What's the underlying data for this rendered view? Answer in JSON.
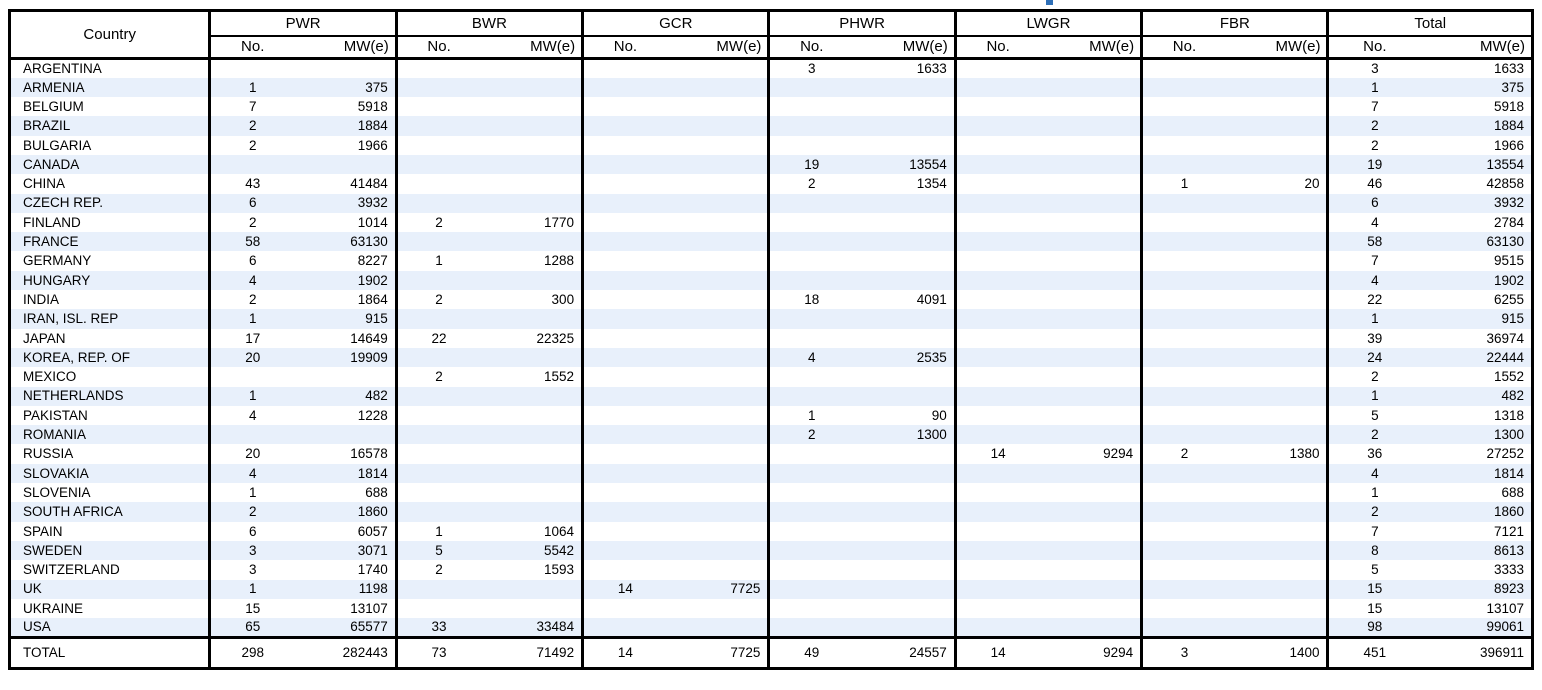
{
  "page": {
    "artifact_color": "#2e6fb7",
    "stripe_color": "#e8f0fb"
  },
  "table": {
    "corner_header": "Country",
    "groups": [
      "PWR",
      "BWR",
      "GCR",
      "PHWR",
      "LWGR",
      "FBR",
      "Total"
    ],
    "sub_headers": {
      "no": "No.",
      "mw": "MW(e)"
    },
    "rows": [
      {
        "country": "ARGENTINA",
        "values": [
          "",
          "",
          "",
          "",
          "",
          "",
          "3",
          "1633",
          "",
          "",
          "",
          "",
          "3",
          "1633"
        ]
      },
      {
        "country": "ARMENIA",
        "values": [
          "1",
          "375",
          "",
          "",
          "",
          "",
          "",
          "",
          "",
          "",
          "",
          "",
          "1",
          "375"
        ]
      },
      {
        "country": "BELGIUM",
        "values": [
          "7",
          "5918",
          "",
          "",
          "",
          "",
          "",
          "",
          "",
          "",
          "",
          "",
          "7",
          "5918"
        ]
      },
      {
        "country": "BRAZIL",
        "values": [
          "2",
          "1884",
          "",
          "",
          "",
          "",
          "",
          "",
          "",
          "",
          "",
          "",
          "2",
          "1884"
        ]
      },
      {
        "country": "BULGARIA",
        "values": [
          "2",
          "1966",
          "",
          "",
          "",
          "",
          "",
          "",
          "",
          "",
          "",
          "",
          "2",
          "1966"
        ]
      },
      {
        "country": "CANADA",
        "values": [
          "",
          "",
          "",
          "",
          "",
          "",
          "19",
          "13554",
          "",
          "",
          "",
          "",
          "19",
          "13554"
        ]
      },
      {
        "country": "CHINA",
        "values": [
          "43",
          "41484",
          "",
          "",
          "",
          "",
          "2",
          "1354",
          "",
          "",
          "1",
          "20",
          "46",
          "42858"
        ]
      },
      {
        "country": "CZECH REP.",
        "values": [
          "6",
          "3932",
          "",
          "",
          "",
          "",
          "",
          "",
          "",
          "",
          "",
          "",
          "6",
          "3932"
        ]
      },
      {
        "country": "FINLAND",
        "values": [
          "2",
          "1014",
          "2",
          "1770",
          "",
          "",
          "",
          "",
          "",
          "",
          "",
          "",
          "4",
          "2784"
        ]
      },
      {
        "country": "FRANCE",
        "values": [
          "58",
          "63130",
          "",
          "",
          "",
          "",
          "",
          "",
          "",
          "",
          "",
          "",
          "58",
          "63130"
        ]
      },
      {
        "country": "GERMANY",
        "values": [
          "6",
          "8227",
          "1",
          "1288",
          "",
          "",
          "",
          "",
          "",
          "",
          "",
          "",
          "7",
          "9515"
        ]
      },
      {
        "country": "HUNGARY",
        "values": [
          "4",
          "1902",
          "",
          "",
          "",
          "",
          "",
          "",
          "",
          "",
          "",
          "",
          "4",
          "1902"
        ]
      },
      {
        "country": "INDIA",
        "values": [
          "2",
          "1864",
          "2",
          "300",
          "",
          "",
          "18",
          "4091",
          "",
          "",
          "",
          "",
          "22",
          "6255"
        ]
      },
      {
        "country": "IRAN, ISL. REP",
        "values": [
          "1",
          "915",
          "",
          "",
          "",
          "",
          "",
          "",
          "",
          "",
          "",
          "",
          "1",
          "915"
        ]
      },
      {
        "country": "JAPAN",
        "values": [
          "17",
          "14649",
          "22",
          "22325",
          "",
          "",
          "",
          "",
          "",
          "",
          "",
          "",
          "39",
          "36974"
        ]
      },
      {
        "country": "KOREA, REP. OF",
        "values": [
          "20",
          "19909",
          "",
          "",
          "",
          "",
          "4",
          "2535",
          "",
          "",
          "",
          "",
          "24",
          "22444"
        ]
      },
      {
        "country": "MEXICO",
        "values": [
          "",
          "",
          "2",
          "1552",
          "",
          "",
          "",
          "",
          "",
          "",
          "",
          "",
          "2",
          "1552"
        ]
      },
      {
        "country": "NETHERLANDS",
        "values": [
          "1",
          "482",
          "",
          "",
          "",
          "",
          "",
          "",
          "",
          "",
          "",
          "",
          "1",
          "482"
        ]
      },
      {
        "country": "PAKISTAN",
        "values": [
          "4",
          "1228",
          "",
          "",
          "",
          "",
          "1",
          "90",
          "",
          "",
          "",
          "",
          "5",
          "1318"
        ]
      },
      {
        "country": "ROMANIA",
        "values": [
          "",
          "",
          "",
          "",
          "",
          "",
          "2",
          "1300",
          "",
          "",
          "",
          "",
          "2",
          "1300"
        ]
      },
      {
        "country": "RUSSIA",
        "values": [
          "20",
          "16578",
          "",
          "",
          "",
          "",
          "",
          "",
          "14",
          "9294",
          "2",
          "1380",
          "36",
          "27252"
        ]
      },
      {
        "country": "SLOVAKIA",
        "values": [
          "4",
          "1814",
          "",
          "",
          "",
          "",
          "",
          "",
          "",
          "",
          "",
          "",
          "4",
          "1814"
        ]
      },
      {
        "country": "SLOVENIA",
        "values": [
          "1",
          "688",
          "",
          "",
          "",
          "",
          "",
          "",
          "",
          "",
          "",
          "",
          "1",
          "688"
        ]
      },
      {
        "country": "SOUTH AFRICA",
        "values": [
          "2",
          "1860",
          "",
          "",
          "",
          "",
          "",
          "",
          "",
          "",
          "",
          "",
          "2",
          "1860"
        ]
      },
      {
        "country": "SPAIN",
        "values": [
          "6",
          "6057",
          "1",
          "1064",
          "",
          "",
          "",
          "",
          "",
          "",
          "",
          "",
          "7",
          "7121"
        ]
      },
      {
        "country": "SWEDEN",
        "values": [
          "3",
          "3071",
          "5",
          "5542",
          "",
          "",
          "",
          "",
          "",
          "",
          "",
          "",
          "8",
          "8613"
        ]
      },
      {
        "country": "SWITZERLAND",
        "values": [
          "3",
          "1740",
          "2",
          "1593",
          "",
          "",
          "",
          "",
          "",
          "",
          "",
          "",
          "5",
          "3333"
        ]
      },
      {
        "country": "UK",
        "values": [
          "1",
          "1198",
          "",
          "",
          "14",
          "7725",
          "",
          "",
          "",
          "",
          "",
          "",
          "15",
          "8923"
        ]
      },
      {
        "country": "UKRAINE",
        "values": [
          "15",
          "13107",
          "",
          "",
          "",
          "",
          "",
          "",
          "",
          "",
          "",
          "",
          "15",
          "13107"
        ]
      },
      {
        "country": "USA",
        "values": [
          "65",
          "65577",
          "33",
          "33484",
          "",
          "",
          "",
          "",
          "",
          "",
          "",
          "",
          "98",
          "99061"
        ]
      }
    ],
    "total_row": {
      "label": "TOTAL",
      "values": [
        "298",
        "282443",
        "73",
        "71492",
        "14",
        "7725",
        "49",
        "24557",
        "14",
        "9294",
        "3",
        "1400",
        "451",
        "396911"
      ]
    }
  }
}
